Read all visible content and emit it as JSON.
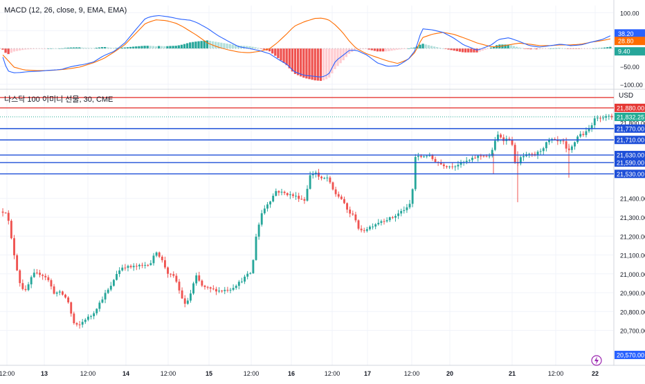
{
  "colors": {
    "up": "#26a69a",
    "down": "#ef5350",
    "macd_line": "#2962ff",
    "signal_line": "#ff6d00",
    "hist_up_strong": "#26a69a",
    "hist_up_weak": "#b2dfdb",
    "hist_down_strong": "#ef5350",
    "hist_down_weak": "#ffcdd2",
    "level_blue": "#1e4fd8",
    "level_red": "#e53935",
    "last_price": "#22ab94",
    "grid": "#f0f3fa",
    "separator": "#d1d4dc",
    "text": "#131722",
    "axis_text": "#131722",
    "alert_icon": "#9c27b0"
  },
  "macd_panel": {
    "title": "MACD (12, 26, close, 9, EMA, EMA)",
    "badges": [
      {
        "value": "38.20",
        "color": "#2962ff"
      },
      {
        "value": "28.80",
        "color": "#ff6d00"
      },
      {
        "value": "9.40",
        "color": "#26a69a"
      }
    ]
  },
  "price_panel": {
    "title": "나스닥 100 이미니 선물, 30, CME",
    "currency": "USD",
    "last_price_label": "21,832.25",
    "bottom_badge": "20,570.00",
    "covered_tick": "21,800.00"
  },
  "icons": {
    "alert": "lightning-alert-icon"
  },
  "chart_data": [
    {
      "type": "bar",
      "name": "MACD",
      "title": "MACD (12, 26, close, 9, EMA, EMA)",
      "y_ticks": [
        100,
        50,
        -50,
        -100
      ],
      "y_tick_labels": [
        "100.00",
        "",
        "−50.00",
        "−100.00"
      ],
      "ylim": [
        -112,
        120
      ],
      "n_bars": 215,
      "series": [
        {
          "name": "MACD",
          "control_points": [
            [
              0,
              -20
            ],
            [
              5,
              -25
            ],
            [
              10,
              -62
            ],
            [
              20,
              -68
            ],
            [
              30,
              -67
            ],
            [
              40,
              -65
            ],
            [
              50,
              -64
            ],
            [
              60,
              -63
            ],
            [
              70,
              -61
            ],
            [
              80,
              -60
            ],
            [
              90,
              -58
            ],
            [
              100,
              -52
            ],
            [
              110,
              -48
            ],
            [
              120,
              -45
            ],
            [
              135,
              -38
            ],
            [
              150,
              -20
            ],
            [
              165,
              -8
            ],
            [
              180,
              15
            ],
            [
              195,
              50
            ],
            [
              210,
              84
            ],
            [
              220,
              90
            ],
            [
              230,
              92
            ],
            [
              245,
              88
            ],
            [
              260,
              82
            ],
            [
              275,
              79
            ],
            [
              285,
              72
            ],
            [
              300,
              56
            ],
            [
              315,
              36
            ],
            [
              330,
              20
            ],
            [
              345,
              5
            ],
            [
              360,
              0
            ],
            [
              375,
              -6
            ],
            [
              390,
              -15
            ],
            [
              400,
              -28
            ],
            [
              415,
              -45
            ],
            [
              425,
              -65
            ],
            [
              440,
              -75
            ],
            [
              455,
              -78
            ],
            [
              465,
              -80
            ],
            [
              475,
              -72
            ],
            [
              485,
              -35
            ],
            [
              495,
              -20
            ],
            [
              505,
              -5
            ],
            [
              515,
              -5
            ],
            [
              530,
              -18
            ],
            [
              545,
              -40
            ],
            [
              560,
              -50
            ],
            [
              575,
              -48
            ],
            [
              590,
              -30
            ],
            [
              600,
              -5
            ],
            [
              610,
              55
            ],
            [
              625,
              52
            ],
            [
              640,
              45
            ],
            [
              655,
              30
            ],
            [
              670,
              10
            ],
            [
              690,
              -5
            ],
            [
              710,
              10
            ],
            [
              720,
              25
            ],
            [
              735,
              30
            ],
            [
              750,
              20
            ],
            [
              765,
              8
            ],
            [
              780,
              4
            ],
            [
              795,
              8
            ],
            [
              810,
              12
            ],
            [
              825,
              8
            ],
            [
              840,
              10
            ],
            [
              855,
              18
            ],
            [
              870,
              25
            ],
            [
              885,
              38
            ]
          ]
        },
        {
          "name": "Signal",
          "control_points": [
            [
              0,
              -10
            ],
            [
              10,
              -30
            ],
            [
              20,
              -52
            ],
            [
              35,
              -60
            ],
            [
              55,
              -62
            ],
            [
              75,
              -61
            ],
            [
              95,
              -58
            ],
            [
              115,
              -52
            ],
            [
              135,
              -40
            ],
            [
              150,
              -28
            ],
            [
              165,
              -10
            ],
            [
              180,
              10
            ],
            [
              195,
              40
            ],
            [
              210,
              70
            ],
            [
              225,
              80
            ],
            [
              240,
              78
            ],
            [
              255,
              70
            ],
            [
              265,
              60
            ],
            [
              275,
              48
            ],
            [
              285,
              36
            ],
            [
              300,
              15
            ],
            [
              315,
              4
            ],
            [
              330,
              -4
            ],
            [
              345,
              -10
            ],
            [
              360,
              -12
            ],
            [
              375,
              -8
            ],
            [
              390,
              0
            ],
            [
              400,
              15
            ],
            [
              415,
              42
            ],
            [
              425,
              62
            ],
            [
              440,
              75
            ],
            [
              455,
              84
            ],
            [
              465,
              85
            ],
            [
              475,
              80
            ],
            [
              485,
              65
            ],
            [
              495,
              45
            ],
            [
              505,
              20
            ],
            [
              515,
              0
            ],
            [
              530,
              -15
            ],
            [
              545,
              -25
            ],
            [
              560,
              -35
            ],
            [
              575,
              -42
            ],
            [
              590,
              -30
            ],
            [
              600,
              -10
            ],
            [
              610,
              30
            ],
            [
              625,
              40
            ],
            [
              640,
              45
            ],
            [
              655,
              40
            ],
            [
              670,
              30
            ],
            [
              690,
              15
            ],
            [
              710,
              5
            ],
            [
              720,
              5
            ],
            [
              735,
              10
            ],
            [
              750,
              15
            ],
            [
              765,
              12
            ],
            [
              780,
              8
            ],
            [
              795,
              8
            ],
            [
              810,
              10
            ],
            [
              825,
              10
            ],
            [
              840,
              12
            ],
            [
              855,
              18
            ],
            [
              870,
              22
            ],
            [
              885,
              28
            ]
          ]
        }
      ]
    },
    {
      "type": "candlestick",
      "name": "Price",
      "title": "나스닥 100 이미니 선물, 30, CME",
      "ylim": [
        20515,
        21975
      ],
      "y_ticks": [
        21400,
        21300,
        21200,
        21100,
        21000,
        20900,
        20800,
        20700
      ],
      "y_tick_labels": [
        "21,400.00",
        "21,300.00",
        "21,200.00",
        "21,100.00",
        "21,000.00",
        "20,900.00",
        "20,800.00",
        "20,700.00"
      ],
      "level_lines": [
        {
          "value": 21935,
          "label": "",
          "color": "#e53935"
        },
        {
          "value": 21880,
          "label": "21,880.00",
          "color": "#e53935"
        },
        {
          "value": 21770,
          "label": "21,770.00",
          "color": "#1e4fd8"
        },
        {
          "value": 21710,
          "label": "21,710.00",
          "color": "#1e4fd8"
        },
        {
          "value": 21630,
          "label": "21,630.00",
          "color": "#1e4fd8"
        },
        {
          "value": 21590,
          "label": "21,590.00",
          "color": "#1e4fd8"
        },
        {
          "value": 21530,
          "label": "21,530.00",
          "color": "#1e4fd8"
        }
      ],
      "last_price": 21832.25,
      "x_ticks": [
        {
          "label": "12:00",
          "bold": false
        },
        {
          "label": "13",
          "bold": true
        },
        {
          "label": "12:00",
          "bold": false
        },
        {
          "label": "14",
          "bold": true
        },
        {
          "label": "12:00",
          "bold": false
        },
        {
          "label": "15",
          "bold": true
        },
        {
          "label": "12:00",
          "bold": false
        },
        {
          "label": "16",
          "bold": true
        },
        {
          "label": "12:00",
          "bold": false
        },
        {
          "label": "17",
          "bold": true
        },
        {
          "label": "12:00",
          "bold": false
        },
        {
          "label": "20",
          "bold": true
        },
        {
          "label": "21",
          "bold": true
        },
        {
          "label": "12:00",
          "bold": false
        },
        {
          "label": "22",
          "bold": true
        }
      ],
      "path_control_points": [
        [
          0,
          21330
        ],
        [
          12,
          21330
        ],
        [
          20,
          21150
        ],
        [
          30,
          20960
        ],
        [
          38,
          20900
        ],
        [
          50,
          21000
        ],
        [
          60,
          21000
        ],
        [
          70,
          20980
        ],
        [
          80,
          20900
        ],
        [
          90,
          20900
        ],
        [
          100,
          20860
        ],
        [
          108,
          20740
        ],
        [
          115,
          20720
        ],
        [
          125,
          20760
        ],
        [
          135,
          20780
        ],
        [
          145,
          20840
        ],
        [
          155,
          20900
        ],
        [
          162,
          20930
        ],
        [
          170,
          21000
        ],
        [
          180,
          21040
        ],
        [
          190,
          21035
        ],
        [
          200,
          21040
        ],
        [
          210,
          21045
        ],
        [
          220,
          21060
        ],
        [
          228,
          21120
        ],
        [
          235,
          21080
        ],
        [
          245,
          21000
        ],
        [
          255,
          20980
        ],
        [
          262,
          20900
        ],
        [
          270,
          20830
        ],
        [
          278,
          20900
        ],
        [
          285,
          20990
        ],
        [
          295,
          20930
        ],
        [
          305,
          20920
        ],
        [
          320,
          20910
        ],
        [
          335,
          20920
        ],
        [
          350,
          20960
        ],
        [
          358,
          20990
        ],
        [
          366,
          21010
        ],
        [
          372,
          21200
        ],
        [
          380,
          21320
        ],
        [
          388,
          21370
        ],
        [
          395,
          21400
        ],
        [
          400,
          21440
        ],
        [
          410,
          21430
        ],
        [
          420,
          21420
        ],
        [
          430,
          21410
        ],
        [
          442,
          21390
        ],
        [
          450,
          21520
        ],
        [
          458,
          21540
        ],
        [
          465,
          21500
        ],
        [
          475,
          21510
        ],
        [
          485,
          21430
        ],
        [
          495,
          21400
        ],
        [
          505,
          21330
        ],
        [
          515,
          21300
        ],
        [
          522,
          21220
        ],
        [
          532,
          21240
        ],
        [
          542,
          21260
        ],
        [
          552,
          21280
        ],
        [
          562,
          21290
        ],
        [
          570,
          21300
        ],
        [
          578,
          21320
        ],
        [
          585,
          21340
        ],
        [
          593,
          21350
        ],
        [
          598,
          21440
        ],
        [
          602,
          21620
        ],
        [
          610,
          21620
        ],
        [
          620,
          21630
        ],
        [
          630,
          21600
        ],
        [
          640,
          21580
        ],
        [
          650,
          21570
        ],
        [
          660,
          21575
        ],
        [
          670,
          21590
        ],
        [
          680,
          21600
        ],
        [
          690,
          21620
        ],
        [
          700,
          21630
        ],
        [
          710,
          21620
        ],
        [
          715,
          21680
        ],
        [
          722,
          21740
        ],
        [
          730,
          21710
        ],
        [
          740,
          21720
        ],
        [
          748,
          21560
        ],
        [
          755,
          21620
        ],
        [
          765,
          21630
        ],
        [
          775,
          21630
        ],
        [
          785,
          21660
        ],
        [
          793,
          21700
        ],
        [
          800,
          21710
        ],
        [
          808,
          21700
        ],
        [
          816,
          21700
        ],
        [
          822,
          21640
        ],
        [
          830,
          21680
        ],
        [
          838,
          21740
        ],
        [
          846,
          21740
        ],
        [
          852,
          21760
        ],
        [
          858,
          21800
        ],
        [
          864,
          21832
        ]
      ]
    }
  ]
}
